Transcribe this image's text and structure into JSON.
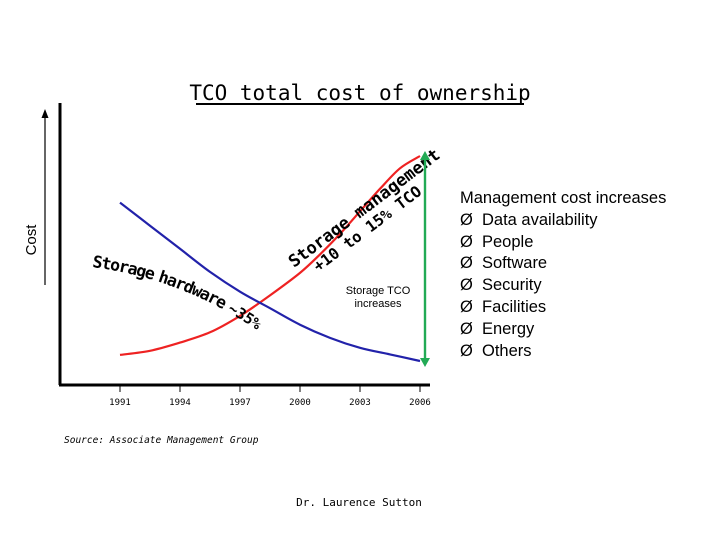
{
  "chart_data": {
    "type": "line",
    "title": "TCO total cost of ownership",
    "ylabel": "Cost",
    "categories": [
      "1991",
      "1994",
      "1997",
      "2000",
      "2003",
      "2006"
    ],
    "series": [
      {
        "color": "#ee2222",
        "points": [
          [
            1991,
            0.03
          ],
          [
            1992.5,
            0.05
          ],
          [
            1994,
            0.09
          ],
          [
            1995.5,
            0.14
          ],
          [
            1997,
            0.22
          ],
          [
            1998.5,
            0.32
          ],
          [
            2000,
            0.43
          ],
          [
            2001,
            0.52
          ],
          [
            2002,
            0.62
          ],
          [
            2003,
            0.73
          ],
          [
            2004,
            0.84
          ],
          [
            2005,
            0.94
          ],
          [
            2006,
            1.0
          ]
        ]
      },
      {
        "color": "#2222aa",
        "points": [
          [
            1991,
            0.48
          ],
          [
            1992.5,
            0.41
          ],
          [
            1994,
            0.34
          ],
          [
            1995.5,
            0.27
          ],
          [
            1997,
            0.21
          ],
          [
            1998.5,
            0.16
          ],
          [
            2000,
            0.11
          ],
          [
            2001.5,
            0.07
          ],
          [
            2003,
            0.04
          ],
          [
            2004.5,
            0.02
          ],
          [
            2006,
            0.0
          ]
        ]
      }
    ],
    "annotations": {
      "hardware": [
        "S",
        "t",
        "o",
        "r",
        "a",
        "g",
        "e",
        " ",
        "h",
        "a",
        "r",
        "d",
        "w",
        "a",
        "r",
        "e",
        " ",
        "~",
        "3",
        "5",
        "%"
      ],
      "management_line1": "Storage management",
      "management_line2": "+10 to 15% TCO",
      "increase": [
        "Storage TCO",
        "increases"
      ]
    },
    "arrow_color": "#22aa55",
    "source": "Source: Associate Management Group",
    "author": "Dr. Laurence Sutton"
  },
  "side_panel": {
    "heading": "Management cost increases",
    "bullet_icon": "arrow-bullet-icon",
    "bullet_glyph": "Ø",
    "items": [
      "Data availability",
      "People",
      "Software",
      "Security",
      "Facilities",
      "Energy",
      "Others"
    ]
  }
}
